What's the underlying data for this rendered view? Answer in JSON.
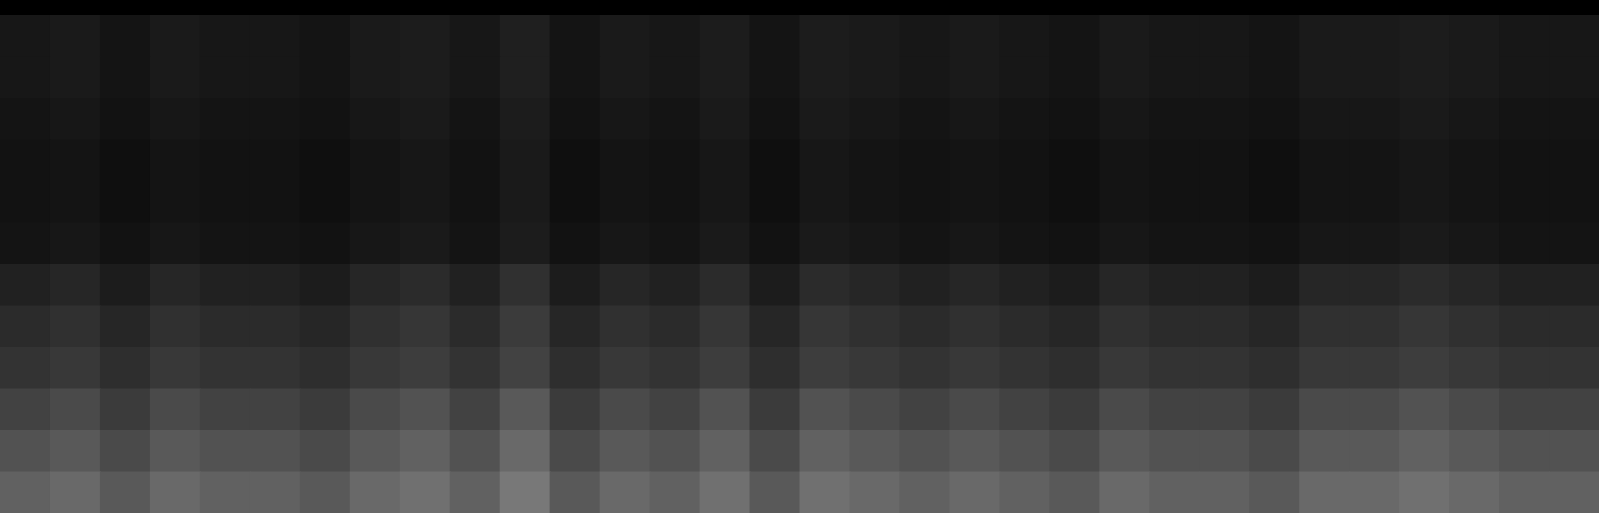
{
  "chart_data": {
    "type": "heatmap",
    "tick_labels": false,
    "color": "#ffffff",
    "zlim": [
      0,
      100
    ],
    "cells": [
      [
        9,
        10,
        8,
        10,
        9,
        9,
        8,
        10,
        11,
        9,
        12,
        8,
        10,
        9,
        11,
        8,
        11,
        10,
        9,
        10,
        9,
        8,
        10,
        9,
        9,
        8,
        10,
        10,
        11,
        10,
        9,
        9
      ],
      [
        9,
        10,
        8,
        10,
        9,
        9,
        8,
        10,
        11,
        9,
        12,
        8,
        10,
        9,
        11,
        8,
        11,
        10,
        9,
        10,
        9,
        8,
        10,
        9,
        9,
        8,
        10,
        10,
        11,
        10,
        9,
        9
      ],
      [
        8,
        9,
        7,
        9,
        8,
        8,
        7,
        9,
        10,
        8,
        11,
        7,
        9,
        8,
        10,
        7,
        10,
        9,
        8,
        9,
        8,
        7,
        9,
        8,
        8,
        7,
        9,
        9,
        10,
        9,
        8,
        8
      ],
      [
        7,
        8,
        6,
        8,
        7,
        7,
        6,
        8,
        9,
        7,
        10,
        6,
        8,
        7,
        9,
        6,
        9,
        8,
        7,
        8,
        7,
        6,
        8,
        7,
        7,
        6,
        8,
        8,
        9,
        8,
        7,
        7
      ],
      [
        7,
        8,
        6,
        8,
        7,
        7,
        6,
        8,
        9,
        7,
        10,
        6,
        8,
        7,
        9,
        6,
        9,
        8,
        7,
        8,
        7,
        6,
        8,
        7,
        7,
        6,
        8,
        8,
        9,
        8,
        7,
        7
      ],
      [
        8,
        9,
        7,
        9,
        8,
        8,
        7,
        9,
        10,
        8,
        11,
        7,
        9,
        8,
        10,
        7,
        10,
        9,
        8,
        9,
        8,
        7,
        9,
        8,
        8,
        7,
        9,
        9,
        10,
        9,
        8,
        8
      ],
      [
        13,
        15,
        11,
        15,
        13,
        13,
        11,
        15,
        17,
        13,
        19,
        11,
        15,
        13,
        17,
        11,
        17,
        15,
        13,
        15,
        13,
        11,
        15,
        13,
        13,
        11,
        15,
        15,
        17,
        15,
        13,
        13
      ],
      [
        17,
        19,
        15,
        19,
        17,
        17,
        15,
        19,
        21,
        17,
        23,
        15,
        19,
        17,
        21,
        15,
        21,
        19,
        17,
        19,
        17,
        15,
        19,
        17,
        17,
        15,
        19,
        19,
        21,
        19,
        17,
        17
      ],
      [
        20,
        22,
        18,
        22,
        20,
        20,
        18,
        22,
        24,
        20,
        26,
        18,
        22,
        20,
        24,
        18,
        24,
        22,
        20,
        22,
        20,
        18,
        22,
        20,
        20,
        18,
        22,
        22,
        24,
        22,
        20,
        20
      ],
      [
        26,
        29,
        23,
        29,
        26,
        26,
        23,
        29,
        32,
        26,
        35,
        23,
        29,
        26,
        32,
        23,
        32,
        29,
        26,
        29,
        26,
        23,
        29,
        26,
        26,
        23,
        29,
        29,
        32,
        29,
        26,
        26
      ],
      [
        32,
        35,
        29,
        35,
        32,
        32,
        29,
        35,
        38,
        32,
        41,
        29,
        35,
        32,
        38,
        29,
        38,
        35,
        32,
        35,
        32,
        29,
        35,
        32,
        32,
        29,
        35,
        35,
        38,
        35,
        32,
        32
      ],
      [
        38,
        41,
        35,
        41,
        38,
        38,
        35,
        41,
        44,
        38,
        47,
        35,
        41,
        38,
        44,
        35,
        44,
        41,
        38,
        41,
        38,
        35,
        41,
        38,
        38,
        35,
        41,
        41,
        44,
        41,
        38,
        38
      ]
    ]
  }
}
